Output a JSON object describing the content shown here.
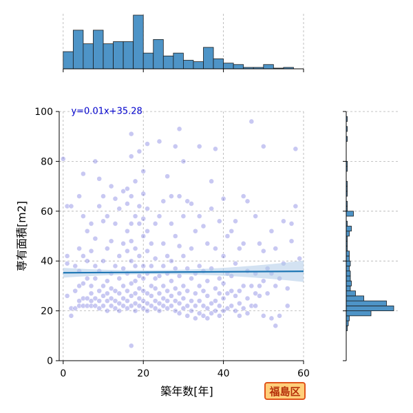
{
  "badge": {
    "label": "福島区",
    "colors": {
      "background": "#ffcf7a",
      "border": "#e0531a",
      "text": "#b5300a"
    }
  },
  "chart_data": {
    "type": "scatter",
    "title": "",
    "xlabel": "築年数[年]",
    "ylabel": "専有面積[m2]",
    "xlim": [
      -1,
      60
    ],
    "ylim": [
      0,
      100
    ],
    "xticks": [
      0,
      20,
      40,
      60
    ],
    "yticks": [
      0,
      20,
      40,
      60,
      80,
      100
    ],
    "grid": true,
    "regression": {
      "equation": "y=0.01x+35.28",
      "slope": 0.01,
      "intercept": 35.28,
      "color": "#1f77b4",
      "ci_color": "#aecbe8"
    },
    "point_color": "#3a3ad0",
    "hist_color": "#4e94c7",
    "x_histogram": {
      "bin_edges": [
        0,
        2.5,
        5,
        7.5,
        10,
        12.5,
        15,
        17.5,
        20,
        22.5,
        25,
        27.5,
        30,
        32.5,
        35,
        37.5,
        40,
        42.5,
        45,
        47.5,
        50,
        52.5,
        55,
        57.5,
        60
      ],
      "counts": [
        24,
        54,
        35,
        54,
        35,
        38,
        38,
        75,
        22,
        41,
        18,
        22,
        12,
        10,
        30,
        14,
        8,
        6,
        2,
        2,
        6,
        1,
        2,
        0
      ]
    },
    "y_histogram": {
      "bin_edges": [
        12,
        14,
        16,
        18,
        20,
        22,
        24,
        26,
        28,
        30,
        32,
        34,
        36,
        38,
        40,
        42,
        44,
        46,
        48,
        50,
        52,
        54,
        56,
        58,
        60,
        62,
        64,
        66,
        68,
        70,
        72,
        74,
        76,
        78,
        80,
        82,
        84,
        86,
        88,
        90,
        92,
        94,
        96,
        98
      ],
      "counts": [
        1,
        2,
        3,
        24,
        46,
        39,
        17,
        9,
        4,
        5,
        4,
        4,
        3,
        4,
        3,
        3,
        1,
        1,
        1,
        3,
        5,
        1,
        0,
        7,
        1,
        1,
        0,
        1,
        1,
        1,
        0,
        0,
        1,
        1,
        0,
        0,
        0,
        0,
        1,
        0,
        1,
        0,
        1
      ],
      "max_count": 50
    },
    "points": [
      [
        1,
        62
      ],
      [
        2,
        62
      ],
      [
        0,
        81
      ],
      [
        1,
        42
      ],
      [
        1,
        39
      ],
      [
        1,
        26
      ],
      [
        2,
        18
      ],
      [
        2,
        21
      ],
      [
        3,
        21
      ],
      [
        3,
        28
      ],
      [
        3,
        38
      ],
      [
        4,
        22
      ],
      [
        4,
        24
      ],
      [
        4,
        30
      ],
      [
        4,
        36
      ],
      [
        4,
        45
      ],
      [
        4,
        66
      ],
      [
        5,
        22
      ],
      [
        5,
        25
      ],
      [
        5,
        31
      ],
      [
        5,
        42
      ],
      [
        5,
        58
      ],
      [
        5,
        75
      ],
      [
        6,
        22
      ],
      [
        6,
        25
      ],
      [
        6,
        33
      ],
      [
        6,
        40
      ],
      [
        6,
        52
      ],
      [
        7,
        22
      ],
      [
        7,
        24
      ],
      [
        7,
        27
      ],
      [
        7,
        30
      ],
      [
        7,
        44
      ],
      [
        7,
        55
      ],
      [
        8,
        22
      ],
      [
        8,
        25
      ],
      [
        8,
        33
      ],
      [
        8,
        38
      ],
      [
        8,
        49
      ],
      [
        8,
        80
      ],
      [
        9,
        21
      ],
      [
        9,
        24
      ],
      [
        9,
        28
      ],
      [
        9,
        36
      ],
      [
        9,
        62
      ],
      [
        9,
        73
      ],
      [
        10,
        22
      ],
      [
        10,
        26
      ],
      [
        10,
        30
      ],
      [
        10,
        40
      ],
      [
        10,
        56
      ],
      [
        10,
        66
      ],
      [
        11,
        20
      ],
      [
        11,
        24
      ],
      [
        11,
        27
      ],
      [
        11,
        32
      ],
      [
        11,
        45
      ],
      [
        11,
        58
      ],
      [
        12,
        22
      ],
      [
        12,
        25
      ],
      [
        12,
        29
      ],
      [
        12,
        35
      ],
      [
        12,
        48
      ],
      [
        12,
        70
      ],
      [
        13,
        21
      ],
      [
        13,
        24
      ],
      [
        13,
        28
      ],
      [
        13,
        38
      ],
      [
        13,
        55
      ],
      [
        13,
        65
      ],
      [
        14,
        20
      ],
      [
        14,
        23
      ],
      [
        14,
        27
      ],
      [
        14,
        33
      ],
      [
        14,
        42
      ],
      [
        14,
        61
      ],
      [
        15,
        22
      ],
      [
        15,
        25
      ],
      [
        15,
        30
      ],
      [
        15,
        37
      ],
      [
        15,
        47
      ],
      [
        15,
        68
      ],
      [
        16,
        21
      ],
      [
        16,
        24
      ],
      [
        16,
        28
      ],
      [
        16,
        35
      ],
      [
        16,
        44
      ],
      [
        16,
        52
      ],
      [
        16,
        63
      ],
      [
        16,
        69
      ],
      [
        17,
        6
      ],
      [
        17,
        22
      ],
      [
        17,
        26
      ],
      [
        17,
        31
      ],
      [
        17,
        40
      ],
      [
        17,
        48
      ],
      [
        17,
        55
      ],
      [
        17,
        66
      ],
      [
        17,
        82
      ],
      [
        17,
        91
      ],
      [
        18,
        20
      ],
      [
        18,
        23
      ],
      [
        18,
        27
      ],
      [
        18,
        32
      ],
      [
        18,
        38
      ],
      [
        18,
        45
      ],
      [
        18,
        58
      ],
      [
        18,
        72
      ],
      [
        19,
        22
      ],
      [
        19,
        25
      ],
      [
        19,
        29
      ],
      [
        19,
        34
      ],
      [
        19,
        42
      ],
      [
        19,
        55
      ],
      [
        19,
        62
      ],
      [
        19,
        84
      ],
      [
        20,
        21
      ],
      [
        20,
        24
      ],
      [
        20,
        28
      ],
      [
        20,
        33
      ],
      [
        20,
        38
      ],
      [
        20,
        50
      ],
      [
        20,
        57
      ],
      [
        20,
        67
      ],
      [
        20,
        76
      ],
      [
        21,
        20
      ],
      [
        21,
        23
      ],
      [
        21,
        27
      ],
      [
        21,
        35
      ],
      [
        21,
        44
      ],
      [
        21,
        52
      ],
      [
        21,
        61
      ],
      [
        21,
        87
      ],
      [
        22,
        22
      ],
      [
        22,
        26
      ],
      [
        22,
        30
      ],
      [
        22,
        38
      ],
      [
        22,
        47
      ],
      [
        23,
        21
      ],
      [
        23,
        24
      ],
      [
        23,
        29
      ],
      [
        23,
        33
      ],
      [
        23,
        41
      ],
      [
        23,
        55
      ],
      [
        24,
        20
      ],
      [
        24,
        23
      ],
      [
        24,
        27
      ],
      [
        24,
        34
      ],
      [
        24,
        58
      ],
      [
        24,
        88
      ],
      [
        25,
        22
      ],
      [
        25,
        25
      ],
      [
        25,
        30
      ],
      [
        25,
        38
      ],
      [
        25,
        47
      ],
      [
        25,
        64
      ],
      [
        26,
        21
      ],
      [
        26,
        24
      ],
      [
        26,
        28
      ],
      [
        26,
        35
      ],
      [
        26,
        42
      ],
      [
        26,
        74
      ],
      [
        27,
        22
      ],
      [
        27,
        26
      ],
      [
        27,
        32
      ],
      [
        27,
        40
      ],
      [
        27,
        55
      ],
      [
        27,
        66
      ],
      [
        28,
        20
      ],
      [
        28,
        24
      ],
      [
        28,
        29
      ],
      [
        28,
        37
      ],
      [
        28,
        50
      ],
      [
        28,
        86
      ],
      [
        29,
        19
      ],
      [
        29,
        23
      ],
      [
        29,
        27
      ],
      [
        29,
        34
      ],
      [
        29,
        46
      ],
      [
        29,
        66
      ],
      [
        29,
        93
      ],
      [
        30,
        21
      ],
      [
        30,
        25
      ],
      [
        30,
        30
      ],
      [
        30,
        42
      ],
      [
        30,
        58
      ],
      [
        30,
        80
      ],
      [
        31,
        18
      ],
      [
        31,
        22
      ],
      [
        31,
        28
      ],
      [
        31,
        37
      ],
      [
        31,
        64
      ],
      [
        32,
        20
      ],
      [
        32,
        24
      ],
      [
        32,
        33
      ],
      [
        32,
        45
      ],
      [
        32,
        63
      ],
      [
        33,
        17
      ],
      [
        33,
        22
      ],
      [
        33,
        27
      ],
      [
        33,
        35
      ],
      [
        33,
        52
      ],
      [
        34,
        19
      ],
      [
        34,
        24
      ],
      [
        34,
        30
      ],
      [
        34,
        38
      ],
      [
        34,
        58
      ],
      [
        34,
        86
      ],
      [
        35,
        18
      ],
      [
        35,
        22
      ],
      [
        35,
        28
      ],
      [
        35,
        36
      ],
      [
        35,
        54
      ],
      [
        36,
        17
      ],
      [
        36,
        21
      ],
      [
        36,
        26
      ],
      [
        36,
        32
      ],
      [
        36,
        47
      ],
      [
        37,
        19
      ],
      [
        37,
        23
      ],
      [
        37,
        61
      ],
      [
        37,
        37
      ],
      [
        37,
        72
      ],
      [
        38,
        20
      ],
      [
        38,
        24
      ],
      [
        38,
        29
      ],
      [
        38,
        45
      ],
      [
        38,
        85
      ],
      [
        39,
        18
      ],
      [
        39,
        22
      ],
      [
        39,
        27
      ],
      [
        39,
        33
      ],
      [
        39,
        56
      ],
      [
        40,
        20
      ],
      [
        40,
        25
      ],
      [
        40,
        31
      ],
      [
        40,
        42
      ],
      [
        40,
        65
      ],
      [
        41,
        21
      ],
      [
        41,
        27
      ],
      [
        41,
        35
      ],
      [
        41,
        50
      ],
      [
        42,
        22
      ],
      [
        42,
        28
      ],
      [
        42,
        34
      ],
      [
        42,
        52
      ],
      [
        43,
        20
      ],
      [
        43,
        26
      ],
      [
        43,
        39
      ],
      [
        43,
        56
      ],
      [
        44,
        18
      ],
      [
        44,
        23
      ],
      [
        44,
        28
      ],
      [
        44,
        45
      ],
      [
        45,
        21
      ],
      [
        45,
        30
      ],
      [
        45,
        47
      ],
      [
        45,
        66
      ],
      [
        46,
        19
      ],
      [
        46,
        25
      ],
      [
        46,
        36
      ],
      [
        46,
        64
      ],
      [
        47,
        22
      ],
      [
        47,
        30
      ],
      [
        47,
        96
      ],
      [
        48,
        22
      ],
      [
        48,
        27
      ],
      [
        48,
        35
      ],
      [
        48,
        58
      ],
      [
        49,
        26
      ],
      [
        49,
        30
      ],
      [
        49,
        47
      ],
      [
        50,
        18
      ],
      [
        50,
        32
      ],
      [
        50,
        44
      ],
      [
        50,
        86
      ],
      [
        51,
        27
      ],
      [
        51,
        37
      ],
      [
        52,
        17
      ],
      [
        52,
        35
      ],
      [
        52,
        52
      ],
      [
        53,
        14
      ],
      [
        53,
        30
      ],
      [
        53,
        45
      ],
      [
        54,
        18
      ],
      [
        54,
        33
      ],
      [
        55,
        39
      ],
      [
        55,
        56
      ],
      [
        56,
        22
      ],
      [
        56,
        29
      ],
      [
        57,
        48
      ],
      [
        57,
        55
      ],
      [
        58,
        85
      ],
      [
        58,
        62
      ],
      [
        59,
        41
      ]
    ]
  }
}
